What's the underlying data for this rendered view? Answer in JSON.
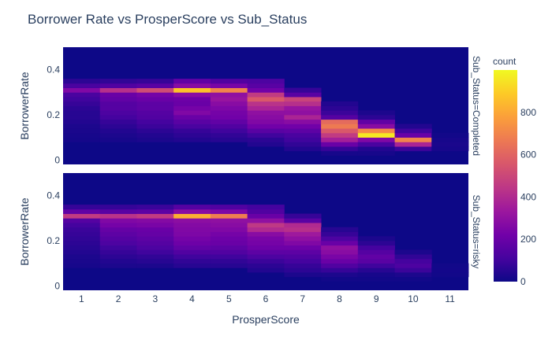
{
  "chart_data": {
    "type": "heatmap",
    "title": "Borrower Rate vs ProsperScore vs Sub_Status",
    "xlabel": "ProsperScore",
    "ylabel": "BorrowerRate",
    "x_categories": [
      "1",
      "2",
      "3",
      "4",
      "5",
      "6",
      "7",
      "8",
      "9",
      "10",
      "11"
    ],
    "x_range": [
      0.5,
      11.5
    ],
    "y_range": [
      -0.02,
      0.5
    ],
    "y_bin_size": 0.02,
    "y_ticks": [
      0,
      0.2,
      0.4
    ],
    "y_tick_labels": [
      "0",
      "0.2",
      "0.4"
    ],
    "colorbar": {
      "title": "count",
      "min": 0,
      "max": 1000,
      "ticks": [
        0,
        200,
        400,
        600,
        800
      ],
      "colorscale": [
        "#0d0887",
        "#46039f",
        "#7201a8",
        "#9c179e",
        "#bd3786",
        "#d8576b",
        "#ed7953",
        "#fb9f3a",
        "#fdca26",
        "#f0f921"
      ]
    },
    "facets": [
      {
        "label": "Sub_Status=Completed",
        "columns": [
          {
            "x": 1,
            "bins": {
              "0.08": 15,
              "0.10": 20,
              "0.12": 25,
              "0.14": 30,
              "0.16": 40,
              "0.18": 50,
              "0.20": 50,
              "0.22": 60,
              "0.24": 80,
              "0.26": 100,
              "0.28": 120,
              "0.30": 260,
              "0.32": 120,
              "0.34": 60
            }
          },
          {
            "x": 2,
            "bins": {
              "0.08": 20,
              "0.10": 30,
              "0.12": 40,
              "0.14": 60,
              "0.16": 80,
              "0.18": 110,
              "0.20": 130,
              "0.22": 150,
              "0.24": 150,
              "0.26": 180,
              "0.28": 200,
              "0.30": 420,
              "0.32": 140,
              "0.34": 70
            }
          },
          {
            "x": 3,
            "bins": {
              "0.08": 30,
              "0.10": 40,
              "0.12": 60,
              "0.14": 90,
              "0.16": 110,
              "0.18": 140,
              "0.20": 150,
              "0.22": 170,
              "0.24": 170,
              "0.26": 200,
              "0.28": 230,
              "0.30": 520,
              "0.32": 160,
              "0.34": 80
            }
          },
          {
            "x": 4,
            "bins": {
              "0.08": 40,
              "0.10": 60,
              "0.12": 80,
              "0.14": 120,
              "0.16": 160,
              "0.18": 200,
              "0.20": 260,
              "0.22": 230,
              "0.24": 200,
              "0.26": 210,
              "0.28": 280,
              "0.30": 870,
              "0.32": 280,
              "0.34": 180
            }
          },
          {
            "x": 5,
            "bins": {
              "0.08": 50,
              "0.10": 70,
              "0.12": 100,
              "0.14": 140,
              "0.16": 180,
              "0.18": 220,
              "0.20": 230,
              "0.22": 250,
              "0.24": 280,
              "0.26": 320,
              "0.28": 300,
              "0.30": 700,
              "0.32": 240,
              "0.34": 140
            }
          },
          {
            "x": 6,
            "bins": {
              "0.06": 40,
              "0.08": 60,
              "0.10": 100,
              "0.12": 160,
              "0.14": 220,
              "0.16": 260,
              "0.18": 280,
              "0.20": 300,
              "0.22": 380,
              "0.24": 430,
              "0.26": 560,
              "0.28": 460,
              "0.30": 220,
              "0.32": 160,
              "0.34": 130
            }
          },
          {
            "x": 7,
            "bins": {
              "0.04": 40,
              "0.06": 70,
              "0.08": 100,
              "0.10": 120,
              "0.12": 170,
              "0.14": 220,
              "0.16": 280,
              "0.18": 380,
              "0.20": 300,
              "0.22": 320,
              "0.24": 420,
              "0.26": 490,
              "0.28": 160,
              "0.30": 80
            }
          },
          {
            "x": 8,
            "bins": {
              "0.02": 20,
              "0.04": 80,
              "0.06": 200,
              "0.08": 360,
              "0.10": 460,
              "0.12": 560,
              "0.14": 670,
              "0.16": 620,
              "0.18": 150,
              "0.20": 90,
              "0.22": 60,
              "0.24": 40
            }
          },
          {
            "x": 9,
            "bins": {
              "0.02": 20,
              "0.04": 40,
              "0.06": 120,
              "0.08": 260,
              "0.10": 960,
              "0.12": 720,
              "0.14": 280,
              "0.16": 180,
              "0.18": 60,
              "0.20": 30
            }
          },
          {
            "x": 10,
            "bins": {
              "0.04": 90,
              "0.06": 380,
              "0.08": 700,
              "0.10": 200,
              "0.12": 100,
              "0.14": 40
            }
          },
          {
            "x": 11,
            "bins": {
              "0.04": 20,
              "0.06": 25,
              "0.08": 20,
              "0.10": 10
            }
          }
        ]
      },
      {
        "label": "Sub_Status=risky",
        "columns": [
          {
            "x": 1,
            "bins": {
              "0.08": 20,
              "0.10": 25,
              "0.12": 30,
              "0.14": 40,
              "0.16": 50,
              "0.18": 60,
              "0.20": 70,
              "0.22": 80,
              "0.24": 90,
              "0.26": 110,
              "0.28": 150,
              "0.30": 460,
              "0.32": 180,
              "0.34": 80
            }
          },
          {
            "x": 2,
            "bins": {
              "0.08": 30,
              "0.10": 40,
              "0.12": 60,
              "0.14": 80,
              "0.16": 100,
              "0.18": 130,
              "0.20": 150,
              "0.22": 170,
              "0.24": 190,
              "0.26": 230,
              "0.28": 260,
              "0.30": 430,
              "0.32": 160,
              "0.34": 80
            }
          },
          {
            "x": 3,
            "bins": {
              "0.08": 30,
              "0.10": 50,
              "0.12": 70,
              "0.14": 100,
              "0.16": 130,
              "0.18": 150,
              "0.20": 170,
              "0.22": 190,
              "0.24": 200,
              "0.26": 240,
              "0.28": 270,
              "0.30": 460,
              "0.32": 170,
              "0.34": 90
            }
          },
          {
            "x": 4,
            "bins": {
              "0.08": 50,
              "0.10": 70,
              "0.12": 100,
              "0.14": 140,
              "0.16": 180,
              "0.18": 210,
              "0.20": 230,
              "0.22": 250,
              "0.24": 260,
              "0.26": 270,
              "0.28": 290,
              "0.30": 820,
              "0.32": 280,
              "0.34": 150
            }
          },
          {
            "x": 5,
            "bins": {
              "0.08": 50,
              "0.10": 70,
              "0.12": 100,
              "0.14": 140,
              "0.16": 170,
              "0.18": 200,
              "0.20": 210,
              "0.22": 230,
              "0.24": 260,
              "0.26": 280,
              "0.28": 300,
              "0.30": 680,
              "0.32": 250,
              "0.34": 140
            }
          },
          {
            "x": 6,
            "bins": {
              "0.06": 40,
              "0.08": 60,
              "0.10": 90,
              "0.12": 130,
              "0.14": 170,
              "0.16": 210,
              "0.18": 230,
              "0.20": 240,
              "0.22": 280,
              "0.24": 400,
              "0.26": 450,
              "0.28": 300,
              "0.30": 200,
              "0.32": 140,
              "0.34": 110
            }
          },
          {
            "x": 7,
            "bins": {
              "0.04": 30,
              "0.06": 60,
              "0.08": 80,
              "0.10": 110,
              "0.12": 140,
              "0.14": 170,
              "0.16": 210,
              "0.18": 260,
              "0.20": 300,
              "0.22": 340,
              "0.24": 420,
              "0.26": 400,
              "0.28": 160,
              "0.30": 80
            }
          },
          {
            "x": 8,
            "bins": {
              "0.02": 10,
              "0.04": 30,
              "0.06": 80,
              "0.08": 140,
              "0.10": 200,
              "0.12": 240,
              "0.14": 280,
              "0.16": 300,
              "0.18": 200,
              "0.20": 130,
              "0.22": 80,
              "0.24": 50
            }
          },
          {
            "x": 9,
            "bins": {
              "0.02": 10,
              "0.04": 20,
              "0.06": 50,
              "0.08": 100,
              "0.10": 160,
              "0.12": 180,
              "0.14": 150,
              "0.16": 110,
              "0.18": 60,
              "0.20": 30
            }
          },
          {
            "x": 10,
            "bins": {
              "0.02": 10,
              "0.04": 30,
              "0.06": 90,
              "0.08": 130,
              "0.10": 110,
              "0.12": 70,
              "0.14": 30
            }
          },
          {
            "x": 11,
            "bins": {
              "0.04": 10,
              "0.06": 12,
              "0.08": 10
            }
          }
        ]
      }
    ]
  }
}
